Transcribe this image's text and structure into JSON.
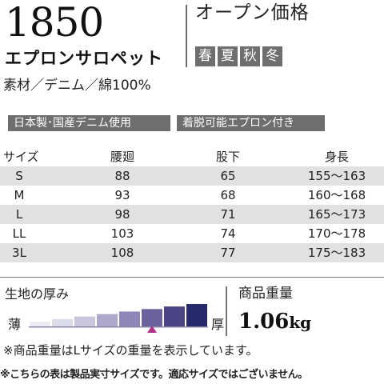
{
  "product": {
    "number": "1850",
    "name": "エプロンサロペット",
    "price": "オープン価格",
    "seasons": [
      "春",
      "夏",
      "秋",
      "冬"
    ],
    "material": "素材／デニム／綿100%"
  },
  "features": [
    "日本製･国産デニム使用",
    "着脱可能エプロン付き"
  ],
  "size_table": {
    "headers": [
      "サイズ",
      "腰廻",
      "股下",
      "身長"
    ],
    "rows": [
      [
        "S",
        "88",
        "65",
        "155〜163"
      ],
      [
        "M",
        "93",
        "68",
        "160〜168"
      ],
      [
        "L",
        "98",
        "71",
        "165〜173"
      ],
      [
        "LL",
        "103",
        "74",
        "170〜178"
      ],
      [
        "3L",
        "108",
        "77",
        "175〜183"
      ]
    ]
  },
  "fabric_thickness": {
    "label": "生地の厚み",
    "thin_label": "薄",
    "thick_label": "厚",
    "levels": 8,
    "selected_level": 6,
    "colors": [
      "#ebebf3",
      "#dcdbe9",
      "#c8c5dd",
      "#aea9cc",
      "#8d86b6",
      "#6b629d",
      "#4b4485",
      "#262a6c"
    ],
    "marker_color": "#b0308c"
  },
  "weight": {
    "label": "商品重量",
    "value": "1.06",
    "unit": "kg"
  },
  "notes": {
    "weight_note": "※商品重量はLサイズの重量を表示しています。",
    "table_note": "※こちらの表は製品実寸サイズです。適応サイズではございません。"
  }
}
